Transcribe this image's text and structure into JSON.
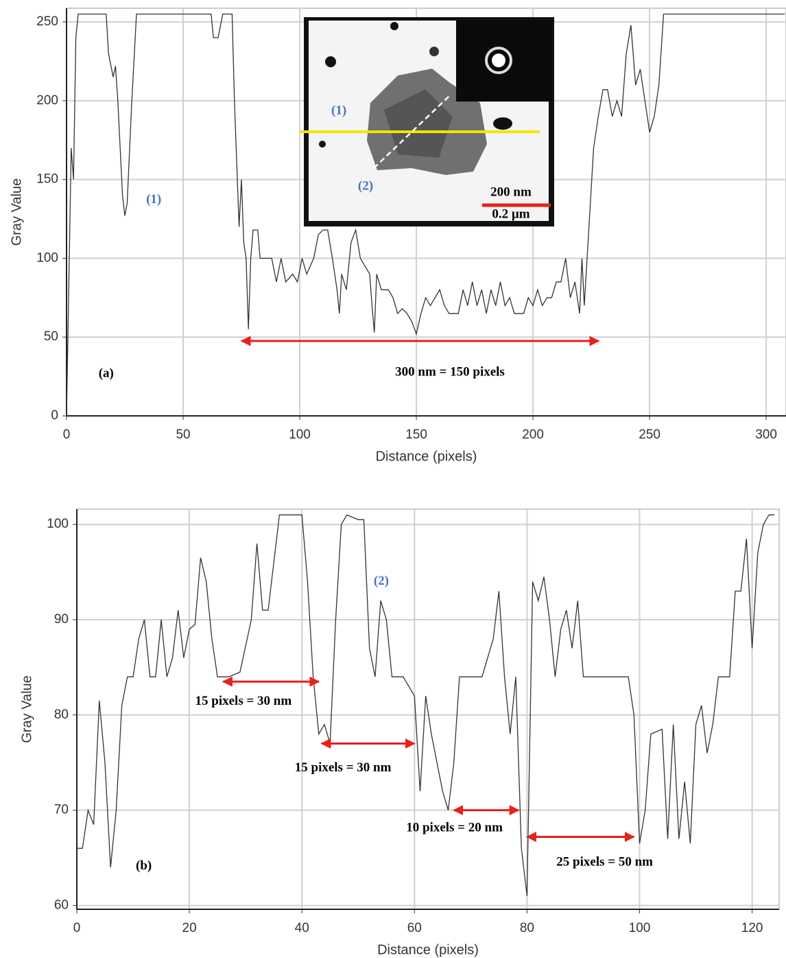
{
  "chart_data": [
    {
      "type": "line",
      "xlabel": "Distance (pixels)",
      "ylabel": "Gray Value",
      "color": "#333333",
      "grid": true,
      "xlim": [
        0,
        308.5
      ],
      "ylim": [
        0,
        258.7
      ],
      "xticks": [
        0,
        50,
        100,
        150,
        200,
        250,
        300
      ],
      "yticks": [
        0,
        50,
        100,
        150,
        200,
        250
      ],
      "x": [
        0,
        2,
        3,
        4,
        5,
        17,
        18,
        20,
        21,
        22,
        24,
        25,
        26,
        28,
        30,
        62,
        63,
        65,
        67,
        71,
        72,
        73,
        74,
        75,
        76,
        77,
        78,
        79,
        80,
        82,
        83,
        88,
        90,
        92,
        94,
        97,
        99,
        101,
        103,
        106,
        108,
        110,
        112,
        114,
        116,
        117,
        118,
        120,
        122,
        124,
        126,
        128,
        130,
        131,
        132,
        133,
        135,
        138,
        140,
        142,
        144,
        146,
        148,
        150,
        152,
        154,
        156,
        158,
        160,
        162,
        164,
        168,
        170,
        172,
        174,
        176,
        178,
        180,
        182,
        184,
        186,
        188,
        190,
        192,
        196,
        198,
        200,
        202,
        204,
        206,
        208,
        210,
        212,
        214,
        216,
        218,
        220,
        221,
        222,
        224,
        226,
        228,
        230,
        232,
        234,
        236,
        238,
        240,
        242,
        244,
        246,
        248,
        250,
        252,
        254,
        256,
        300,
        308
      ],
      "values": [
        0,
        170,
        150,
        240,
        255,
        255,
        230,
        215,
        222,
        200,
        140,
        127,
        135,
        200,
        255,
        255,
        240,
        240,
        255,
        255,
        200,
        160,
        120,
        150,
        110,
        100,
        55,
        100,
        118,
        118,
        100,
        100,
        85,
        100,
        85,
        90,
        85,
        100,
        90,
        100,
        115,
        118,
        118,
        100,
        80,
        65,
        90,
        80,
        110,
        118,
        100,
        95,
        90,
        70,
        53,
        90,
        80,
        80,
        75,
        65,
        68,
        65,
        60,
        52,
        65,
        75,
        70,
        75,
        80,
        70,
        65,
        65,
        80,
        70,
        85,
        70,
        80,
        65,
        80,
        70,
        85,
        70,
        75,
        65,
        65,
        75,
        70,
        80,
        70,
        75,
        75,
        85,
        85,
        100,
        75,
        85,
        65,
        100,
        70,
        120,
        170,
        190,
        207,
        207,
        190,
        200,
        190,
        230,
        248,
        210,
        220,
        200,
        180,
        190,
        210,
        255,
        255,
        255
      ],
      "annotations": [
        {
          "text": "(1)",
          "x": 37.4,
          "y": 137,
          "color": "#4472c4"
        },
        {
          "text": "(a)",
          "x": 17,
          "y": 26.6,
          "color": "#000000"
        },
        {
          "text": "300 nm = 150 pixels",
          "x": 164.4,
          "y": 27.4,
          "color": "#000000"
        }
      ],
      "arrows": [
        {
          "x": [
            75,
            228.2
          ],
          "y": 47.5,
          "color": "#e8201c"
        }
      ],
      "inset": {
        "labels": [
          "(1)",
          "(2)",
          "200 nm",
          "0.2 µm"
        ]
      }
    },
    {
      "type": "line",
      "xlabel": "Distance (pixels)",
      "ylabel": "Gray Value",
      "color": "#333333",
      "grid": true,
      "xlim": [
        0,
        124.8
      ],
      "ylim": [
        59.6,
        101.6
      ],
      "xticks": [
        0,
        20,
        40,
        60,
        80,
        100,
        120
      ],
      "yticks": [
        60,
        70,
        80,
        90,
        100
      ],
      "x": [
        0,
        1,
        2,
        3,
        4,
        5,
        6,
        7,
        8,
        9,
        10,
        11,
        12,
        13,
        14,
        15,
        16,
        17,
        18,
        19,
        20,
        21,
        22,
        23,
        24,
        25,
        27,
        29,
        31,
        32,
        33,
        34,
        35,
        36,
        40,
        41,
        42,
        43,
        44,
        45,
        46,
        47,
        48,
        50,
        51,
        52,
        53,
        54,
        55,
        56,
        58,
        60,
        61,
        62,
        63,
        64,
        65,
        66,
        67,
        68,
        72,
        74,
        75,
        76,
        77,
        78,
        79,
        80,
        81,
        82,
        83,
        84,
        85,
        86,
        87,
        88,
        89,
        90,
        98,
        99,
        100,
        101,
        102,
        104,
        105,
        106,
        107,
        108,
        109,
        110,
        111,
        112,
        113,
        114,
        116,
        117,
        118,
        119,
        120,
        121,
        122,
        123,
        124
      ],
      "values": [
        66,
        66,
        70,
        68.5,
        81.5,
        75,
        64,
        70,
        81,
        84,
        84,
        88,
        90,
        84,
        84,
        90,
        84,
        86,
        91,
        86,
        89,
        89.5,
        96.5,
        94,
        88,
        84,
        84,
        84.5,
        90,
        98,
        91,
        91,
        96,
        101,
        101,
        94,
        84,
        78,
        79,
        77,
        90,
        100,
        101,
        100.5,
        100.5,
        87,
        84,
        92,
        90,
        84,
        84,
        82,
        72,
        82,
        78,
        75,
        72,
        70,
        75,
        84,
        84,
        88,
        93,
        84,
        78,
        84,
        66,
        61,
        94,
        92,
        94.5,
        90,
        84,
        89,
        91,
        87,
        92,
        84,
        84,
        80,
        66.5,
        70,
        78,
        78.5,
        67,
        79,
        67,
        73,
        66.5,
        79,
        81,
        76,
        79,
        84,
        84,
        93,
        93,
        98.5,
        87,
        97,
        100,
        101,
        101
      ],
      "annotations": [
        {
          "text": "(2)",
          "x": 54.1,
          "y": 94,
          "color": "#4472c4"
        },
        {
          "text": "(b)",
          "x": 11.9,
          "y": 64.1,
          "color": "#000000"
        },
        {
          "text": "15 pixels = 30 nm",
          "x": 29.6,
          "y": 81.4,
          "color": "#000000"
        },
        {
          "text": "15 pixels = 30 nm",
          "x": 47.3,
          "y": 74.4,
          "color": "#000000"
        },
        {
          "text": "10 pixels = 20 nm",
          "x": 67.1,
          "y": 68.1,
          "color": "#000000"
        },
        {
          "text": "25 pixels = 50 nm",
          "x": 93.8,
          "y": 64.5,
          "color": "#000000"
        }
      ],
      "arrows": [
        {
          "x": [
            26,
            43
          ],
          "y": 83.5,
          "color": "#e8201c"
        },
        {
          "x": [
            43.5,
            60
          ],
          "y": 77,
          "color": "#e8201c"
        },
        {
          "x": [
            67,
            78.5
          ],
          "y": 70,
          "color": "#e8201c"
        },
        {
          "x": [
            80,
            99
          ],
          "y": 67.2,
          "color": "#e8201c"
        }
      ]
    }
  ]
}
